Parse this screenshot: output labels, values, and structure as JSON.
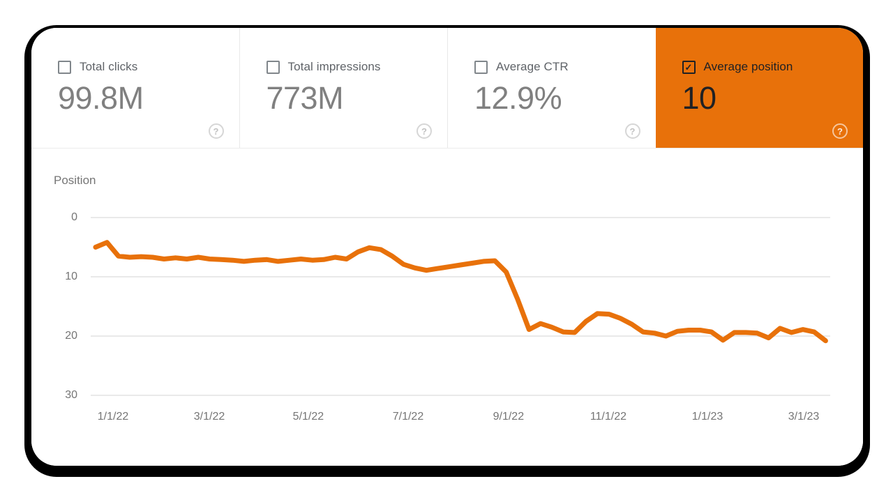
{
  "metrics": [
    {
      "label": "Total clicks",
      "value": "99.8M",
      "checked": false
    },
    {
      "label": "Total impressions",
      "value": "773M",
      "checked": false
    },
    {
      "label": "Average CTR",
      "value": "12.9%",
      "checked": false
    },
    {
      "label": "Average position",
      "value": "10",
      "checked": true
    }
  ],
  "icons": {
    "help": "?",
    "check": "✓"
  },
  "colors": {
    "selected_metric_background": "#e8710a",
    "line_series": "#e8710a",
    "metric_label_text": "#5f6368",
    "metric_value_text": "#808080",
    "selected_metric_text": "#202124",
    "axis_text": "#757575",
    "gridline": "#e9e9e9",
    "card_outline_shadow": "#000000"
  },
  "chart_data": {
    "type": "line",
    "title": "Position",
    "y_inverted": true,
    "grid": true,
    "legend": "none",
    "ylim": [
      0,
      30
    ],
    "y_ticks": [
      0,
      10,
      20,
      30
    ],
    "x_unit": "weeks_since_start",
    "x_ticks": [
      {
        "label": "1/1/22",
        "week": 1.53
      },
      {
        "label": "3/1/22",
        "week": 9.97
      },
      {
        "label": "5/1/22",
        "week": 18.65
      },
      {
        "label": "7/1/22",
        "week": 27.4
      },
      {
        "label": "9/1/22",
        "week": 36.2
      },
      {
        "label": "11/1/22",
        "week": 44.95
      },
      {
        "label": "1/1/23",
        "week": 53.64
      },
      {
        "label": "3/1/23",
        "week": 62.08
      }
    ],
    "series": [
      {
        "name": "Average position",
        "color": "#e8710a",
        "values": [
          5.0,
          4.2,
          6.5,
          6.7,
          6.6,
          6.7,
          7.0,
          6.8,
          7.0,
          6.7,
          7.0,
          7.1,
          7.2,
          7.4,
          7.2,
          7.1,
          7.4,
          7.2,
          7.0,
          7.2,
          7.1,
          6.7,
          7.0,
          5.8,
          5.1,
          5.4,
          6.5,
          7.9,
          8.5,
          8.9,
          8.6,
          8.3,
          8.0,
          7.7,
          7.4,
          7.3,
          9.2,
          13.8,
          18.9,
          17.9,
          18.5,
          19.3,
          19.4,
          17.5,
          16.2,
          16.3,
          17.0,
          18.0,
          19.3,
          19.5,
          20.0,
          19.2,
          19.0,
          19.0,
          19.3,
          20.7,
          19.4,
          19.4,
          19.5,
          20.3,
          18.7,
          19.4,
          18.9,
          19.3,
          20.8
        ]
      }
    ]
  }
}
